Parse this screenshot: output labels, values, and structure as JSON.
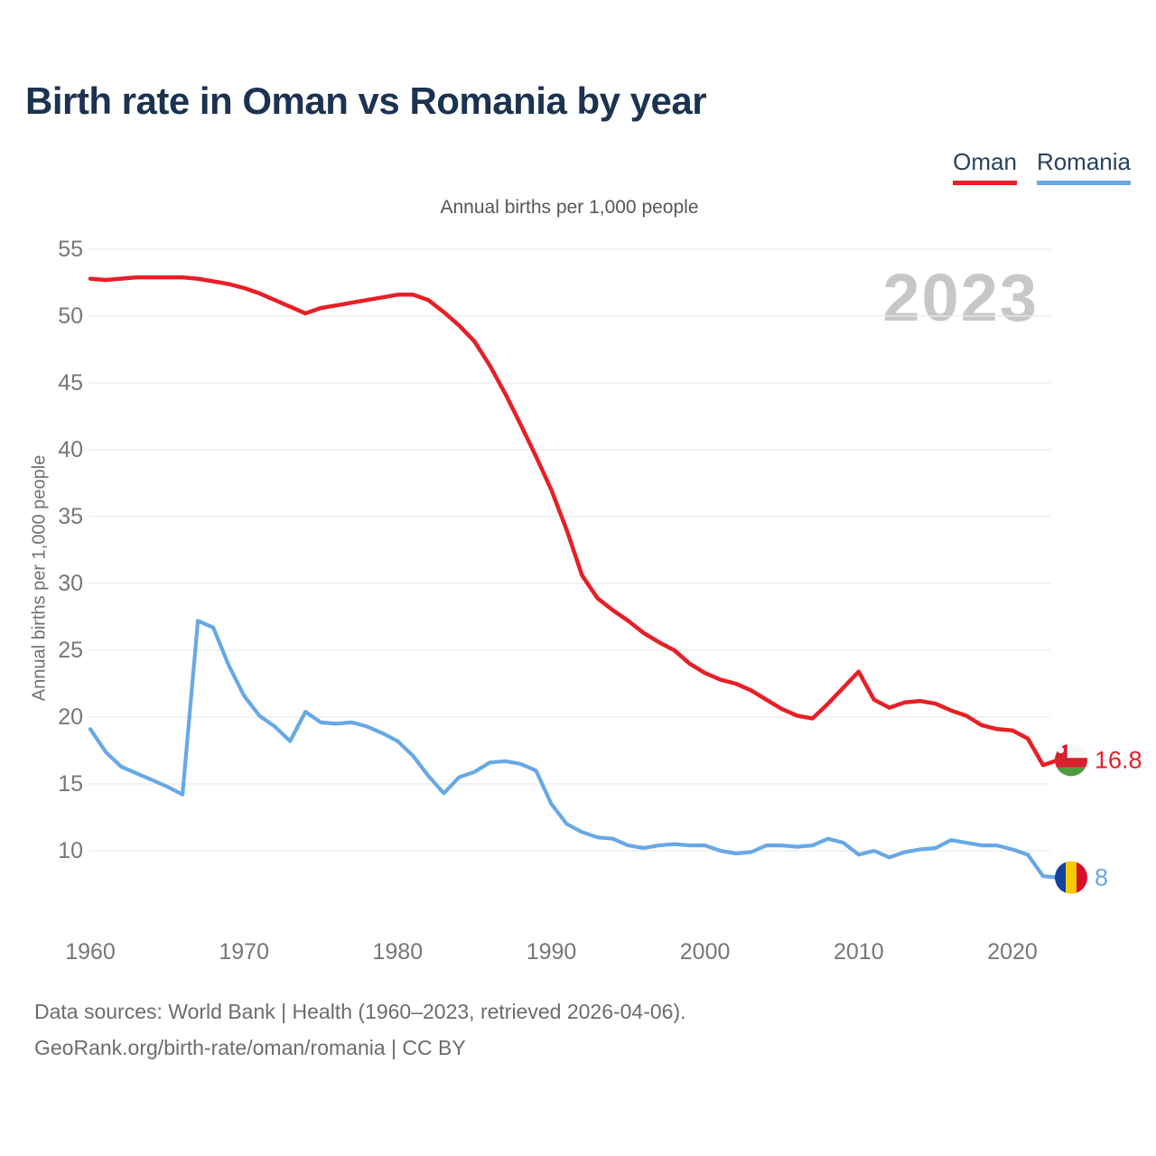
{
  "header": {
    "title": "Birth rate in Oman vs Romania by year"
  },
  "legend": {
    "items": [
      {
        "label": "Oman",
        "color": "#e81f26"
      },
      {
        "label": "Romania",
        "color": "#68a8e4"
      }
    ]
  },
  "chart_data": {
    "type": "line",
    "title": "Annual births per 1,000 people",
    "ylabel": "Annual births per 1,000 people",
    "watermark": "2023",
    "grid": true,
    "legend_position": "top-right",
    "ylim": [
      8,
      55
    ],
    "yticks": [
      10,
      15,
      20,
      25,
      30,
      35,
      40,
      45,
      50,
      55
    ],
    "xticks": [
      1960,
      1970,
      1980,
      1990,
      2000,
      2010,
      2020
    ],
    "years": [
      1960,
      1961,
      1962,
      1963,
      1964,
      1965,
      1966,
      1967,
      1968,
      1969,
      1970,
      1971,
      1972,
      1973,
      1974,
      1975,
      1976,
      1977,
      1978,
      1979,
      1980,
      1981,
      1982,
      1983,
      1984,
      1985,
      1986,
      1987,
      1988,
      1989,
      1990,
      1991,
      1992,
      1993,
      1994,
      1995,
      1996,
      1997,
      1998,
      1999,
      2000,
      2001,
      2002,
      2003,
      2004,
      2005,
      2006,
      2007,
      2008,
      2009,
      2010,
      2011,
      2012,
      2013,
      2014,
      2015,
      2016,
      2017,
      2018,
      2019,
      2020,
      2021,
      2022,
      2023
    ],
    "series": [
      {
        "name": "Oman",
        "color": "#e81f26",
        "end_label": "16.8",
        "flag": {
          "name": "oman-flag-icon",
          "type": "oman",
          "colors": {
            "red": "#da1f2d",
            "white": "#f6f6f6",
            "green": "#4f9b40"
          }
        },
        "values": [
          52.8,
          52.7,
          52.8,
          52.9,
          52.9,
          52.9,
          52.9,
          52.8,
          52.6,
          52.4,
          52.1,
          51.7,
          51.2,
          50.7,
          50.2,
          50.6,
          50.8,
          51.0,
          51.2,
          51.4,
          51.6,
          51.6,
          51.2,
          50.3,
          49.3,
          48.1,
          46.3,
          44.2,
          41.9,
          39.5,
          37.0,
          34.0,
          30.6,
          28.9,
          28.0,
          27.2,
          26.3,
          25.6,
          25.0,
          24.0,
          23.3,
          22.8,
          22.5,
          22.0,
          21.3,
          20.6,
          20.1,
          19.9,
          21.0,
          22.2,
          23.4,
          21.3,
          20.7,
          21.1,
          21.2,
          21.0,
          20.5,
          20.1,
          19.4,
          19.1,
          19.0,
          18.4,
          16.4,
          16.8
        ]
      },
      {
        "name": "Romania",
        "color": "#68a8e4",
        "end_label": "8",
        "flag": {
          "name": "romania-flag-icon",
          "type": "romania",
          "colors": {
            "blue": "#16429f",
            "yellow": "#f7cb00",
            "red": "#d8112b"
          }
        },
        "values": [
          19.1,
          17.4,
          16.3,
          15.8,
          15.3,
          14.8,
          14.2,
          27.2,
          26.7,
          23.9,
          21.6,
          20.1,
          19.3,
          18.2,
          20.4,
          19.6,
          19.5,
          19.6,
          19.3,
          18.8,
          18.2,
          17.1,
          15.6,
          14.3,
          15.5,
          15.9,
          16.6,
          16.7,
          16.5,
          16.0,
          13.5,
          12.0,
          11.4,
          11.0,
          10.9,
          10.4,
          10.2,
          10.4,
          10.5,
          10.4,
          10.4,
          10.0,
          9.8,
          9.9,
          10.4,
          10.4,
          10.3,
          10.4,
          10.9,
          10.6,
          9.7,
          10.0,
          9.5,
          9.9,
          10.1,
          10.2,
          10.8,
          10.6,
          10.4,
          10.4,
          10.1,
          9.7,
          8.1,
          8.0
        ]
      }
    ]
  },
  "footer": {
    "line1": "Data sources: World Bank | Health (1960–2023, retrieved 2026-04-06).",
    "line2": "GeoRank.org/birth-rate/oman/romania | CC BY"
  }
}
